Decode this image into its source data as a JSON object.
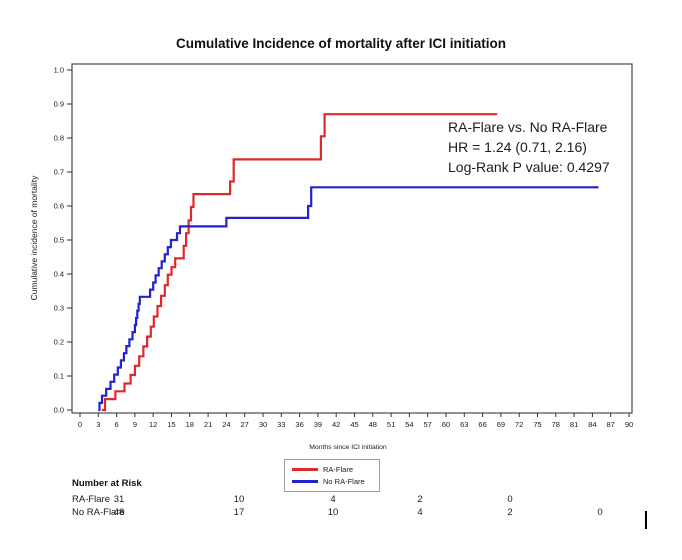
{
  "title": "Cumulative Incidence of mortality after ICI initiation",
  "chart_data": {
    "type": "line",
    "subtype": "step",
    "title": "Cumulative Incidence of mortality after ICI initiation",
    "xlabel": "Months since ICI initiation",
    "ylabel": "Cumulative incidence of mortality",
    "xlim": [
      0,
      90
    ],
    "ylim": [
      0.0,
      1.0
    ],
    "x_tick_start": 0,
    "x_tick_end": 90,
    "x_tick_step": 3,
    "y_tick_labels": [
      "0.0",
      "0.1",
      "0.2",
      "0.3",
      "0.4",
      "0.5",
      "0.6",
      "0.7",
      "0.8",
      "0.9",
      "1.0"
    ],
    "grid": false,
    "legend_position": "bottom-center-boxed",
    "annotation": {
      "line1": "RA-Flare vs. No RA-Flare",
      "line2": "HR = 1.24 (0.71, 2.16)",
      "line3": "Log-Rank P value: 0.4297"
    },
    "series": [
      {
        "name": "RA-Flare",
        "color": "#df2828",
        "start": [
          3.6,
          0.0
        ],
        "points": [
          [
            4.1,
            0.032
          ],
          [
            5.8,
            0.055
          ],
          [
            7.3,
            0.078
          ],
          [
            8.3,
            0.103
          ],
          [
            9.0,
            0.13
          ],
          [
            9.7,
            0.158
          ],
          [
            10.4,
            0.187
          ],
          [
            11.0,
            0.216
          ],
          [
            11.6,
            0.245
          ],
          [
            12.1,
            0.275
          ],
          [
            12.7,
            0.306
          ],
          [
            13.3,
            0.336
          ],
          [
            13.9,
            0.367
          ],
          [
            14.4,
            0.398
          ],
          [
            15.0,
            0.42
          ],
          [
            15.6,
            0.446
          ],
          [
            17.0,
            0.483
          ],
          [
            17.4,
            0.52
          ],
          [
            17.8,
            0.558
          ],
          [
            18.2,
            0.597
          ],
          [
            18.6,
            0.635
          ],
          [
            24.6,
            0.672
          ],
          [
            25.2,
            0.737
          ],
          [
            39.5,
            0.805
          ],
          [
            40.1,
            0.87
          ]
        ],
        "end_month": 68.4
      },
      {
        "name": "No RA-Flare",
        "color": "#2222d0",
        "start": [
          3.0,
          0.0
        ],
        "points": [
          [
            3.2,
            0.021
          ],
          [
            3.6,
            0.042
          ],
          [
            4.3,
            0.062
          ],
          [
            5.0,
            0.083
          ],
          [
            5.6,
            0.104
          ],
          [
            6.2,
            0.125
          ],
          [
            6.7,
            0.146
          ],
          [
            7.2,
            0.167
          ],
          [
            7.6,
            0.188
          ],
          [
            8.1,
            0.208
          ],
          [
            8.6,
            0.229
          ],
          [
            9.0,
            0.25
          ],
          [
            9.2,
            0.271
          ],
          [
            9.4,
            0.292
          ],
          [
            9.6,
            0.312
          ],
          [
            9.8,
            0.333
          ],
          [
            11.5,
            0.354
          ],
          [
            12.0,
            0.375
          ],
          [
            12.4,
            0.396
          ],
          [
            12.9,
            0.417
          ],
          [
            13.4,
            0.437
          ],
          [
            13.9,
            0.458
          ],
          [
            14.4,
            0.479
          ],
          [
            14.9,
            0.5
          ],
          [
            15.9,
            0.52
          ],
          [
            16.4,
            0.54
          ],
          [
            24.0,
            0.565
          ],
          [
            37.4,
            0.6
          ],
          [
            37.9,
            0.655
          ]
        ],
        "end_month": 85.0
      }
    ]
  },
  "risk_table": {
    "header": "Number at Risk",
    "rows": [
      {
        "label": "RA-Flare",
        "values": [
          "31",
          "10",
          "4",
          "2",
          "0"
        ]
      },
      {
        "label": "No RA-Flare",
        "values": [
          "48",
          "17",
          "10",
          "4",
          "2",
          "0"
        ]
      }
    ]
  }
}
